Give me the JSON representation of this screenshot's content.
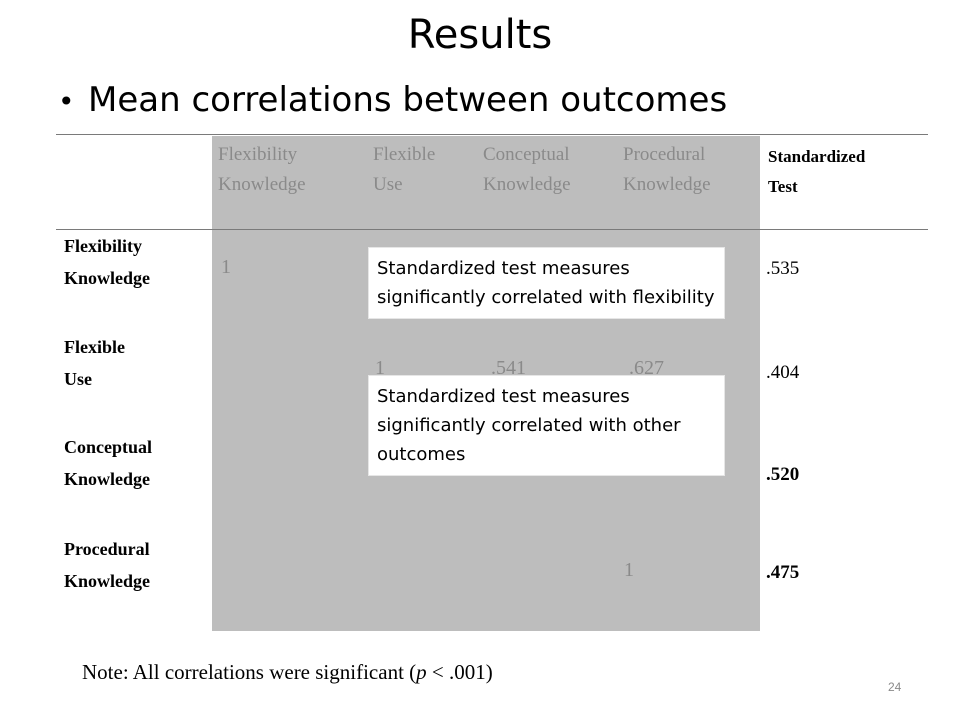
{
  "slide": {
    "title": "Results",
    "bullet": "Mean correlations between outcomes",
    "bullet_marker": "•",
    "page_number": "24"
  },
  "table": {
    "columns": [
      {
        "line1": "Flexibility",
        "line2": "Knowledge"
      },
      {
        "line1": "Flexible",
        "line2": "Use"
      },
      {
        "line1": "Conceptual",
        "line2": "Knowledge"
      },
      {
        "line1": "Procedural",
        "line2": "Knowledge"
      },
      {
        "line1": "Standardized",
        "line2": "Test"
      }
    ],
    "rows": [
      {
        "line1": "Flexibility",
        "line2": "Knowledge",
        "diag": "1",
        "standardized": ".535"
      },
      {
        "line1": "Flexible",
        "line2": "Use",
        "diag": "1",
        "visible_values": [
          ".541",
          ".627"
        ],
        "standardized": ".404"
      },
      {
        "line1": "Conceptual",
        "line2": "Knowledge",
        "standardized": ".520"
      },
      {
        "line1": "Procedural",
        "line2": "Knowledge",
        "diag": "1",
        "standardized": ".475"
      }
    ]
  },
  "callouts": [
    {
      "text": "Standardized test measures significantly correlated with flexibility"
    },
    {
      "text": "Standardized test measures significantly correlated with other outcomes"
    }
  ],
  "note": {
    "prefix": "Note: All correlations were significant (",
    "italic": "p",
    "suffix": " < .001)"
  }
}
